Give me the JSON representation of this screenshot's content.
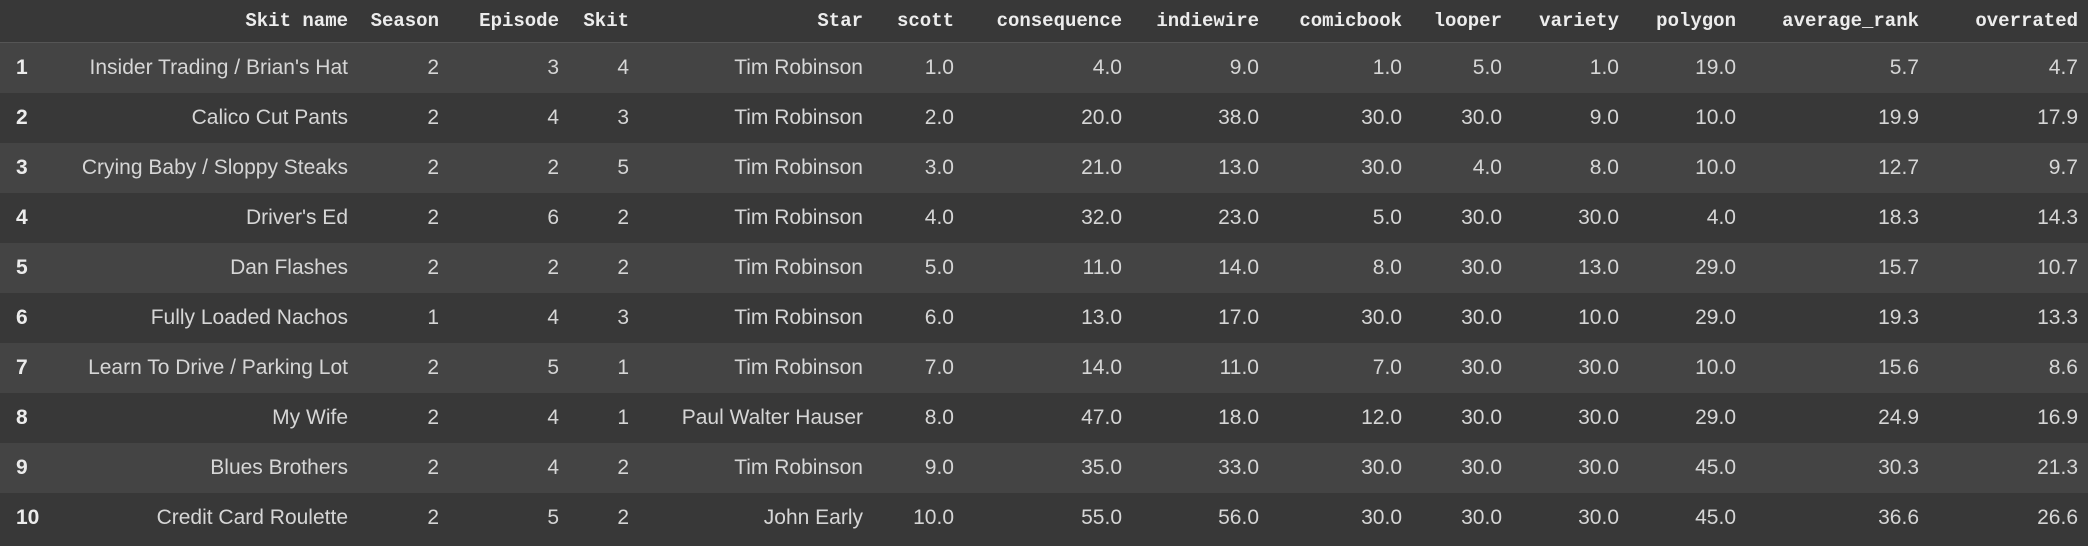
{
  "columns": [
    "",
    "Skit name",
    "Season",
    "Episode",
    "Skit",
    "Star",
    "scott",
    "consequence",
    "indiewire",
    "comicbook",
    "looper",
    "variety",
    "polygon",
    "average_rank",
    "overrated"
  ],
  "rows": [
    [
      "1",
      "Insider Trading / Brian's Hat",
      "2",
      "3",
      "4",
      "Tim Robinson",
      "1.0",
      "4.0",
      "9.0",
      "1.0",
      "5.0",
      "1.0",
      "19.0",
      "5.7",
      "4.7"
    ],
    [
      "2",
      "Calico Cut Pants",
      "2",
      "4",
      "3",
      "Tim Robinson",
      "2.0",
      "20.0",
      "38.0",
      "30.0",
      "30.0",
      "9.0",
      "10.0",
      "19.9",
      "17.9"
    ],
    [
      "3",
      "Crying Baby / Sloppy Steaks",
      "2",
      "2",
      "5",
      "Tim Robinson",
      "3.0",
      "21.0",
      "13.0",
      "30.0",
      "4.0",
      "8.0",
      "10.0",
      "12.7",
      "9.7"
    ],
    [
      "4",
      "Driver's Ed",
      "2",
      "6",
      "2",
      "Tim Robinson",
      "4.0",
      "32.0",
      "23.0",
      "5.0",
      "30.0",
      "30.0",
      "4.0",
      "18.3",
      "14.3"
    ],
    [
      "5",
      "Dan Flashes",
      "2",
      "2",
      "2",
      "Tim Robinson",
      "5.0",
      "11.0",
      "14.0",
      "8.0",
      "30.0",
      "13.0",
      "29.0",
      "15.7",
      "10.7"
    ],
    [
      "6",
      "Fully Loaded Nachos",
      "1",
      "4",
      "3",
      "Tim Robinson",
      "6.0",
      "13.0",
      "17.0",
      "30.0",
      "30.0",
      "10.0",
      "29.0",
      "19.3",
      "13.3"
    ],
    [
      "7",
      "Learn To Drive / Parking Lot",
      "2",
      "5",
      "1",
      "Tim Robinson",
      "7.0",
      "14.0",
      "11.0",
      "7.0",
      "30.0",
      "30.0",
      "10.0",
      "15.6",
      "8.6"
    ],
    [
      "8",
      "My Wife",
      "2",
      "4",
      "1",
      "Paul Walter Hauser",
      "8.0",
      "47.0",
      "18.0",
      "12.0",
      "30.0",
      "30.0",
      "29.0",
      "24.9",
      "16.9"
    ],
    [
      "9",
      "Blues Brothers",
      "2",
      "4",
      "2",
      "Tim Robinson",
      "9.0",
      "35.0",
      "33.0",
      "30.0",
      "30.0",
      "30.0",
      "45.0",
      "30.3",
      "21.3"
    ],
    [
      "10",
      "Credit Card Roulette",
      "2",
      "5",
      "2",
      "John Early",
      "10.0",
      "55.0",
      "56.0",
      "30.0",
      "30.0",
      "30.0",
      "45.0",
      "36.6",
      "26.6"
    ]
  ]
}
